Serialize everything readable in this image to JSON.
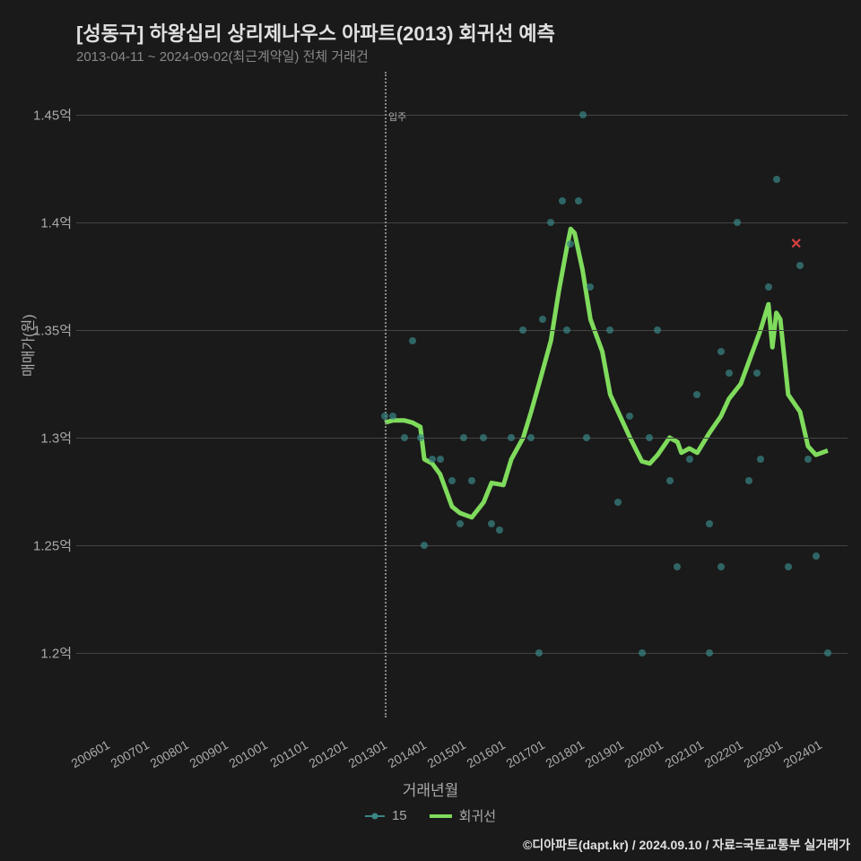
{
  "title": "[성동구] 하왕십리 상리제나우스 아파트(2013) 회귀선 예측",
  "subtitle": "2013-04-11 ~ 2024-09-02(최근계약일) 전체 거래건",
  "ylabel": "매매가(원)",
  "xlabel": "거래년월",
  "credit": "©디아파트(dapt.kr) / 2024.09.10 / 자료=국토교통부 실거래가",
  "legend": {
    "scatter": "15",
    "line": "회귀선"
  },
  "vline_label": "입주",
  "colors": {
    "background": "#1a1a1a",
    "grid": "#444444",
    "text": "#aaaaaa",
    "title": "#e0e0e0",
    "scatter": "#3b8686",
    "line": "#7fdb5c",
    "xmark": "#d84040",
    "vline": "#888888"
  },
  "fonts": {
    "title_size": 22,
    "subtitle_size": 15,
    "label_size": 16,
    "tick_size": 14
  },
  "chart": {
    "type": "line+scatter",
    "x_range": [
      2005.5,
      2025.0
    ],
    "y_range": [
      1.17,
      1.47
    ],
    "y_ticks": [
      1.2,
      1.25,
      1.3,
      1.35,
      1.4,
      1.45
    ],
    "y_tick_labels": [
      "1.2억",
      "1.25억",
      "1.3억",
      "1.35억",
      "1.4억",
      "1.45억"
    ],
    "x_ticks": [
      2006,
      2007,
      2008,
      2009,
      2010,
      2011,
      2012,
      2013,
      2014,
      2015,
      2016,
      2017,
      2018,
      2019,
      2020,
      2021,
      2022,
      2023,
      2024
    ],
    "x_tick_labels": [
      "200601",
      "200701",
      "200801",
      "200901",
      "201001",
      "201101",
      "201201",
      "201301",
      "201401",
      "201501",
      "201601",
      "201701",
      "201801",
      "201901",
      "202001",
      "202101",
      "202201",
      "202301",
      "202401"
    ],
    "vline_x": 2013.3,
    "line_width": 5,
    "marker_size": 8,
    "scatter": [
      [
        2013.3,
        1.31
      ],
      [
        2013.5,
        1.31
      ],
      [
        2013.8,
        1.3
      ],
      [
        2014.0,
        1.345
      ],
      [
        2014.2,
        1.3
      ],
      [
        2014.3,
        1.25
      ],
      [
        2014.5,
        1.29
      ],
      [
        2014.7,
        1.29
      ],
      [
        2015.0,
        1.28
      ],
      [
        2015.2,
        1.26
      ],
      [
        2015.3,
        1.3
      ],
      [
        2015.5,
        1.28
      ],
      [
        2015.8,
        1.3
      ],
      [
        2016.0,
        1.26
      ],
      [
        2016.2,
        1.257
      ],
      [
        2016.5,
        1.3
      ],
      [
        2016.8,
        1.35
      ],
      [
        2017.0,
        1.3
      ],
      [
        2017.2,
        1.2
      ],
      [
        2017.3,
        1.355
      ],
      [
        2017.5,
        1.4
      ],
      [
        2017.8,
        1.41
      ],
      [
        2017.9,
        1.35
      ],
      [
        2018.0,
        1.39
      ],
      [
        2018.2,
        1.41
      ],
      [
        2018.3,
        1.45
      ],
      [
        2018.5,
        1.37
      ],
      [
        2018.4,
        1.3
      ],
      [
        2019.0,
        1.35
      ],
      [
        2019.2,
        1.27
      ],
      [
        2019.5,
        1.31
      ],
      [
        2019.8,
        1.2
      ],
      [
        2020.0,
        1.3
      ],
      [
        2020.2,
        1.35
      ],
      [
        2020.5,
        1.28
      ],
      [
        2020.7,
        1.24
      ],
      [
        2021.0,
        1.29
      ],
      [
        2021.2,
        1.32
      ],
      [
        2021.5,
        1.26
      ],
      [
        2021.5,
        1.2
      ],
      [
        2021.8,
        1.34
      ],
      [
        2021.8,
        1.24
      ],
      [
        2022.0,
        1.33
      ],
      [
        2022.2,
        1.4
      ],
      [
        2022.5,
        1.28
      ],
      [
        2022.7,
        1.33
      ],
      [
        2022.8,
        1.29
      ],
      [
        2023.0,
        1.37
      ],
      [
        2023.2,
        1.42
      ],
      [
        2023.5,
        1.24
      ],
      [
        2023.8,
        1.38
      ],
      [
        2024.0,
        1.29
      ],
      [
        2024.2,
        1.245
      ],
      [
        2024.5,
        1.2
      ]
    ],
    "x_marker": [
      2023.7,
      1.39
    ],
    "line_series": [
      [
        2013.3,
        1.307
      ],
      [
        2013.5,
        1.308
      ],
      [
        2013.8,
        1.308
      ],
      [
        2014.0,
        1.307
      ],
      [
        2014.2,
        1.305
      ],
      [
        2014.3,
        1.29
      ],
      [
        2014.5,
        1.288
      ],
      [
        2014.7,
        1.283
      ],
      [
        2015.0,
        1.268
      ],
      [
        2015.2,
        1.265
      ],
      [
        2015.5,
        1.263
      ],
      [
        2015.8,
        1.27
      ],
      [
        2016.0,
        1.279
      ],
      [
        2016.3,
        1.278
      ],
      [
        2016.5,
        1.29
      ],
      [
        2016.8,
        1.3
      ],
      [
        2017.0,
        1.312
      ],
      [
        2017.2,
        1.325
      ],
      [
        2017.5,
        1.345
      ],
      [
        2017.7,
        1.368
      ],
      [
        2017.9,
        1.388
      ],
      [
        2018.0,
        1.397
      ],
      [
        2018.1,
        1.395
      ],
      [
        2018.3,
        1.378
      ],
      [
        2018.5,
        1.355
      ],
      [
        2018.8,
        1.34
      ],
      [
        2019.0,
        1.32
      ],
      [
        2019.3,
        1.308
      ],
      [
        2019.5,
        1.3
      ],
      [
        2019.8,
        1.289
      ],
      [
        2020.0,
        1.288
      ],
      [
        2020.2,
        1.292
      ],
      [
        2020.5,
        1.3
      ],
      [
        2020.7,
        1.298
      ],
      [
        2020.8,
        1.293
      ],
      [
        2021.0,
        1.295
      ],
      [
        2021.2,
        1.293
      ],
      [
        2021.5,
        1.302
      ],
      [
        2021.8,
        1.31
      ],
      [
        2022.0,
        1.318
      ],
      [
        2022.3,
        1.325
      ],
      [
        2022.5,
        1.335
      ],
      [
        2022.8,
        1.35
      ],
      [
        2023.0,
        1.362
      ],
      [
        2023.1,
        1.342
      ],
      [
        2023.2,
        1.358
      ],
      [
        2023.3,
        1.355
      ],
      [
        2023.5,
        1.32
      ],
      [
        2023.8,
        1.312
      ],
      [
        2024.0,
        1.296
      ],
      [
        2024.2,
        1.292
      ],
      [
        2024.5,
        1.294
      ]
    ]
  }
}
